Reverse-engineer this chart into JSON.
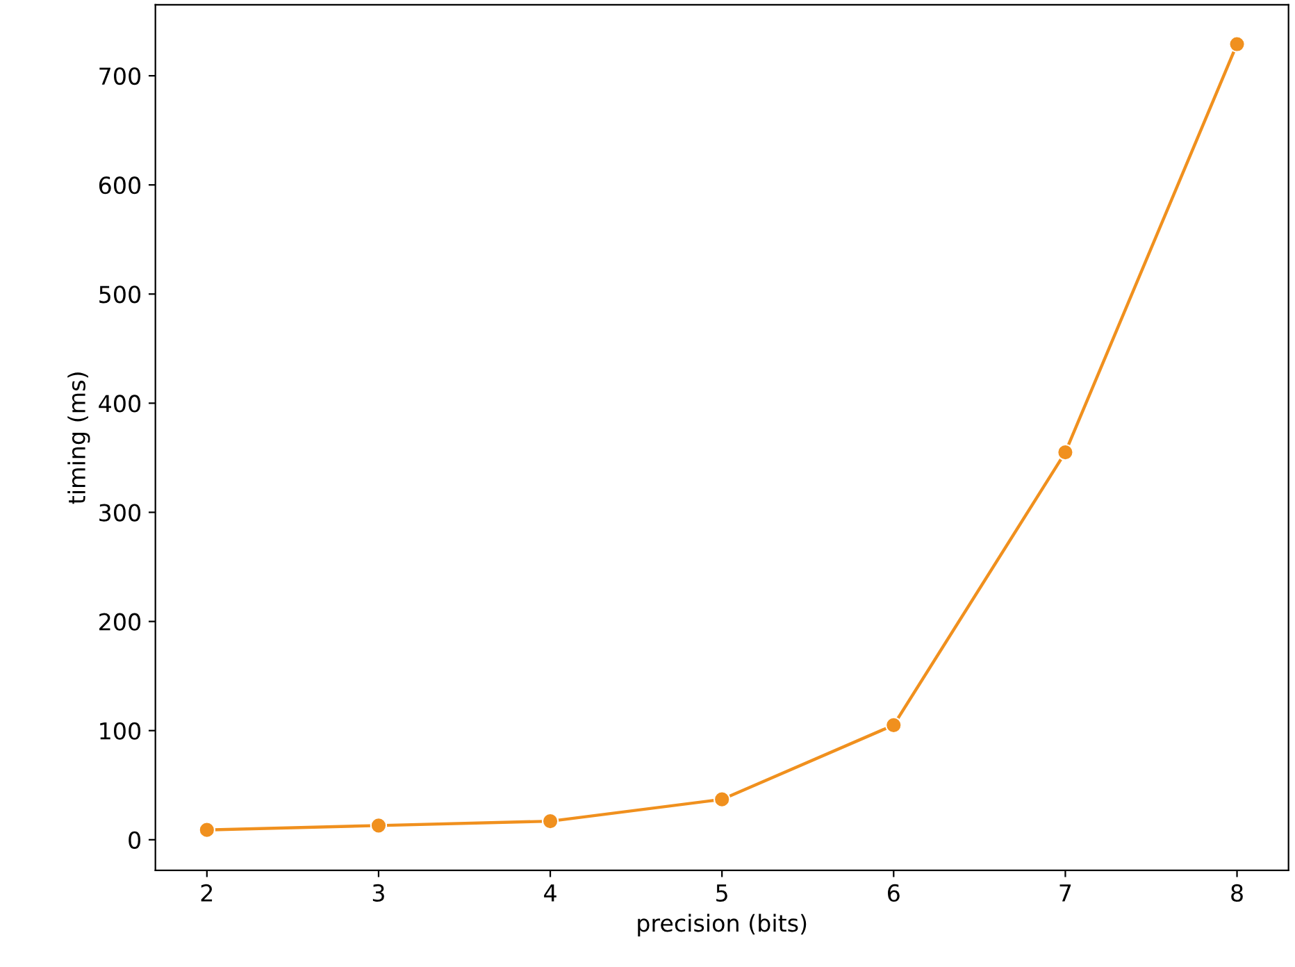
{
  "chart_data": {
    "type": "line",
    "xlabel": "precision (bits)",
    "ylabel": "timing (ms)",
    "x": [
      2,
      3,
      4,
      5,
      6,
      7,
      8
    ],
    "series": [
      {
        "color": "#f0901e",
        "values": [
          9,
          13,
          17,
          37,
          105,
          355,
          729
        ]
      }
    ],
    "xlim": [
      1.7,
      8.3
    ],
    "xticks": [
      2,
      3,
      4,
      5,
      6,
      7,
      8
    ],
    "ylim": [
      -28,
      765
    ],
    "yticks": [
      0,
      100,
      200,
      300,
      400,
      500,
      600,
      700
    ],
    "marker": "circle",
    "line_style": "solid",
    "grid": false
  }
}
